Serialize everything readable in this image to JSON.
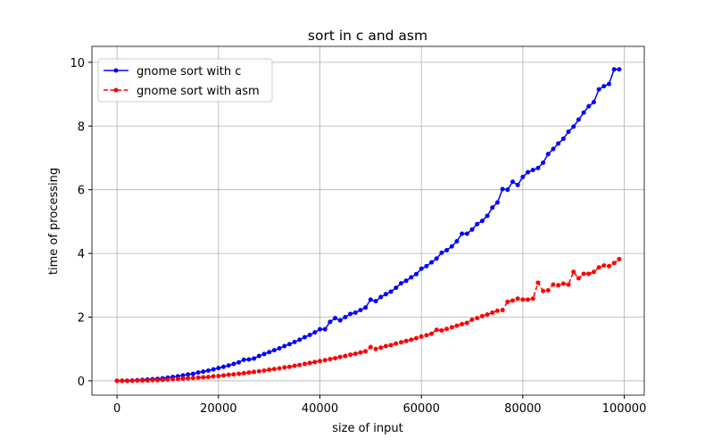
{
  "chart_data": {
    "type": "line",
    "title": "sort in c and asm",
    "x_label": "size of input",
    "y_label": "time of processing",
    "x": [
      0,
      1000,
      2000,
      3000,
      4000,
      5000,
      6000,
      7000,
      8000,
      9000,
      10000,
      11000,
      12000,
      13000,
      14000,
      15000,
      16000,
      17000,
      18000,
      19000,
      20000,
      21000,
      22000,
      23000,
      24000,
      25000,
      26000,
      27000,
      28000,
      29000,
      30000,
      31000,
      32000,
      33000,
      34000,
      35000,
      36000,
      37000,
      38000,
      39000,
      40000,
      41000,
      42000,
      43000,
      44000,
      45000,
      46000,
      47000,
      48000,
      49000,
      50000,
      51000,
      52000,
      53000,
      54000,
      55000,
      56000,
      57000,
      58000,
      59000,
      60000,
      61000,
      62000,
      63000,
      64000,
      65000,
      66000,
      67000,
      68000,
      69000,
      70000,
      71000,
      72000,
      73000,
      74000,
      75000,
      76000,
      77000,
      78000,
      79000,
      80000,
      81000,
      82000,
      83000,
      84000,
      85000,
      86000,
      87000,
      88000,
      89000,
      90000,
      91000,
      92000,
      93000,
      94000,
      95000,
      96000,
      97000,
      98000,
      99000
    ],
    "series": [
      {
        "name": "gnome sort with c",
        "color": "#0000ff",
        "marker": "o",
        "values": [
          0,
          0,
          0,
          0.01,
          0.02,
          0.03,
          0.04,
          0.05,
          0.06,
          0.08,
          0.1,
          0.12,
          0.14,
          0.17,
          0.2,
          0.22,
          0.26,
          0.29,
          0.32,
          0.36,
          0.4,
          0.44,
          0.48,
          0.53,
          0.58,
          0.66,
          0.67,
          0.7,
          0.78,
          0.84,
          0.9,
          0.96,
          1.02,
          1.09,
          1.15,
          1.22,
          1.29,
          1.37,
          1.44,
          1.52,
          1.62,
          1.62,
          1.85,
          1.97,
          1.9,
          2.0,
          2.1,
          2.14,
          2.22,
          2.3,
          2.55,
          2.5,
          2.63,
          2.72,
          2.8,
          2.92,
          3.06,
          3.14,
          3.25,
          3.35,
          3.52,
          3.6,
          3.72,
          3.84,
          4.02,
          4.1,
          4.22,
          4.38,
          4.62,
          4.62,
          4.75,
          4.92,
          5.02,
          5.18,
          5.44,
          5.6,
          6.02,
          6.0,
          6.25,
          6.15,
          6.4,
          6.55,
          6.62,
          6.68,
          6.85,
          7.12,
          7.28,
          7.45,
          7.6,
          7.82,
          7.98,
          8.2,
          8.42,
          8.62,
          8.75,
          9.15,
          9.25,
          9.32,
          9.78,
          9.78
        ]
      },
      {
        "name": "gnome sort with asm",
        "color": "#ff0000",
        "marker": "o",
        "dashed": true,
        "values": [
          0,
          0,
          0,
          0,
          0.01,
          0.01,
          0.01,
          0.02,
          0.02,
          0.03,
          0.04,
          0.05,
          0.06,
          0.07,
          0.08,
          0.09,
          0.1,
          0.11,
          0.12,
          0.14,
          0.15,
          0.17,
          0.19,
          0.2,
          0.22,
          0.24,
          0.26,
          0.28,
          0.3,
          0.32,
          0.35,
          0.37,
          0.39,
          0.42,
          0.44,
          0.47,
          0.5,
          0.53,
          0.56,
          0.59,
          0.62,
          0.65,
          0.68,
          0.71,
          0.75,
          0.78,
          0.82,
          0.85,
          0.89,
          0.93,
          1.06,
          1.0,
          1.04,
          1.09,
          1.12,
          1.17,
          1.21,
          1.25,
          1.29,
          1.34,
          1.39,
          1.43,
          1.48,
          1.6,
          1.58,
          1.63,
          1.68,
          1.73,
          1.78,
          1.82,
          1.92,
          1.97,
          2.03,
          2.08,
          2.14,
          2.2,
          2.22,
          2.48,
          2.52,
          2.58,
          2.55,
          2.55,
          2.58,
          3.08,
          2.82,
          2.84,
          3.02,
          3.0,
          3.05,
          3.02,
          3.42,
          3.22,
          3.36,
          3.36,
          3.42,
          3.56,
          3.62,
          3.6,
          3.7,
          3.82
        ]
      }
    ],
    "xlim": [
      -4950,
      103950
    ],
    "xticks": [
      0,
      20000,
      40000,
      60000,
      80000,
      100000
    ],
    "ylim": [
      -0.45,
      10.5
    ],
    "yticks": [
      0,
      2,
      4,
      6,
      8,
      10
    ],
    "grid": true,
    "legend": "upper left"
  }
}
